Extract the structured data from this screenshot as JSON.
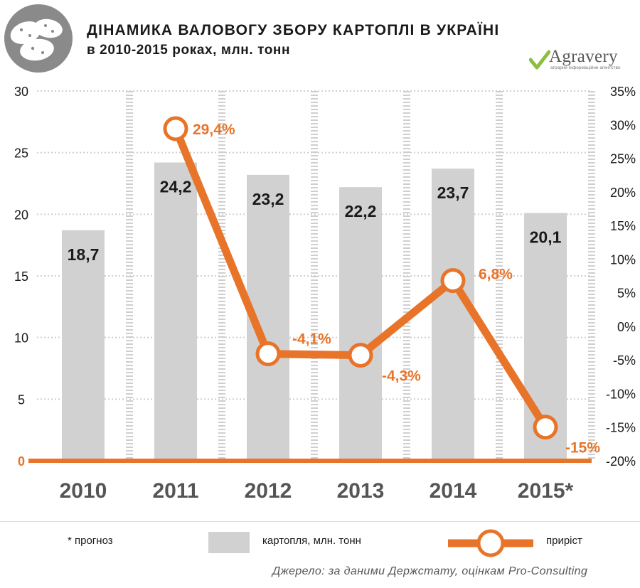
{
  "header": {
    "title": "ДІНАМИКА ВАЛОВОГУ ЗБОРУ КАРТОПЛІ В УКРАЇНІ",
    "subtitle": "в 2010-2015 роках, млн. тонн",
    "brand_name": "Agravery",
    "brand_tagline": "аграрне інформаційне агентство",
    "icon": "potato-icon"
  },
  "legend": {
    "forecast_note": "* прогноз",
    "bar_label": "картопля, млн. тонн",
    "line_label": "приріст"
  },
  "source": "Джерело: за даними Держстату, оцінкам Pro-Consulting",
  "colors": {
    "bar": "#d1d1d1",
    "line": "#e8742a",
    "text": "#1a1a1a",
    "axis_year": "#555555",
    "grid": "#cfcfcf"
  },
  "chart_data": {
    "type": "bar",
    "categories": [
      "2010",
      "2011",
      "2012",
      "2013",
      "2014",
      "2015*"
    ],
    "series": [
      {
        "name": "картопля, млн. тонн",
        "type": "bar",
        "axis": "left",
        "values": [
          18.7,
          24.2,
          23.2,
          22.2,
          23.7,
          20.1
        ],
        "labels": [
          "18,7",
          "24,2",
          "23,2",
          "22,2",
          "23,7",
          "20,1"
        ]
      },
      {
        "name": "приріст",
        "type": "line",
        "axis": "right",
        "values": [
          null,
          29.4,
          -4.1,
          -4.3,
          6.8,
          -15
        ],
        "labels": [
          "",
          "29,4%",
          "-4,1%",
          "-4,3%",
          "6,8%",
          "-15%"
        ]
      }
    ],
    "y_left": {
      "ylim": [
        0,
        30
      ],
      "ticks": [
        "0",
        "5",
        "10",
        "15",
        "20",
        "25",
        "30"
      ],
      "tick_values": [
        0,
        5,
        10,
        15,
        20,
        25,
        30
      ]
    },
    "y_right": {
      "ylim": [
        -20,
        35
      ],
      "ticks": [
        "-20%",
        "-15%",
        "-10%",
        "-5%",
        "0%",
        "5%",
        "10%",
        "15%",
        "20%",
        "25%",
        "30%",
        "35%"
      ],
      "tick_values": [
        -20,
        -15,
        -10,
        -5,
        0,
        5,
        10,
        15,
        20,
        25,
        30,
        35
      ]
    },
    "grid": true,
    "legend_position": "bottom"
  }
}
